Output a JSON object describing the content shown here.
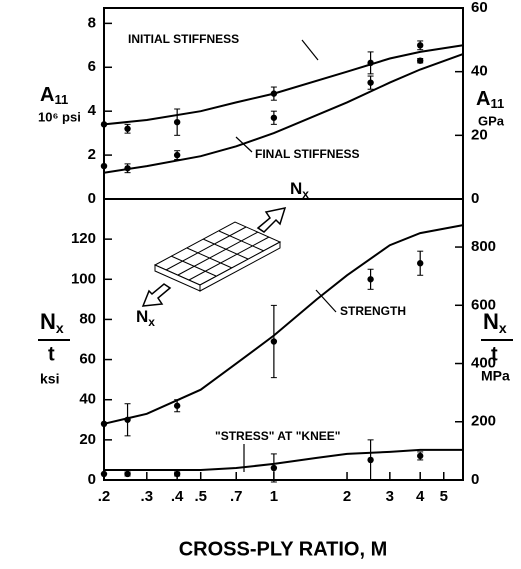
{
  "chart_data": [
    {
      "type": "line",
      "color": "#000000",
      "log_x": true,
      "xlim": [
        0.2,
        6
      ],
      "ylim": [
        0,
        8.7
      ],
      "yticks": [
        0,
        2,
        4,
        6,
        8
      ],
      "y2lim": [
        0,
        60
      ],
      "y2ticks": [
        0,
        20,
        40,
        60
      ],
      "ylabel": {
        "symbol": "A",
        "subscript": "11",
        "units": "10⁶ psi"
      },
      "y2label": {
        "symbol": "A",
        "subscript": "11",
        "units": "GPa"
      },
      "series": [
        {
          "name": "INITIAL STIFFNESS",
          "x": [
            0.2,
            0.3,
            0.5,
            0.7,
            1,
            2,
            3,
            4,
            6
          ],
          "values": [
            3.4,
            3.6,
            4.0,
            4.4,
            4.8,
            5.8,
            6.4,
            6.7,
            7.0
          ]
        },
        {
          "name": "FINAL STIFFNESS",
          "x": [
            0.2,
            0.3,
            0.5,
            0.7,
            1,
            2,
            3,
            4,
            6
          ],
          "values": [
            1.2,
            1.5,
            1.95,
            2.4,
            3.0,
            4.4,
            5.3,
            5.9,
            6.6
          ]
        },
        {
          "x": [
            0.2,
            0.25,
            0.4,
            1,
            2.5,
            4
          ],
          "values": [
            3.4,
            3.2,
            3.5,
            4.8,
            6.2,
            7.0
          ],
          "errors": [
            0,
            0.2,
            0.6,
            0.3,
            0.5,
            0.2
          ]
        },
        {
          "x": [
            0.2,
            0.25,
            0.4,
            1,
            2.5,
            4
          ],
          "values": [
            1.5,
            1.4,
            2.0,
            3.7,
            5.3,
            6.3
          ],
          "errors": [
            0,
            0.2,
            0.2,
            0.3,
            0.3,
            0.1
          ]
        }
      ]
    },
    {
      "type": "line",
      "color": "#000000",
      "log_x": true,
      "xlim": [
        0.2,
        6
      ],
      "xticks": [
        {
          "value": 0.2,
          "label": ".2"
        },
        {
          "value": 0.3,
          "label": ".3"
        },
        {
          "value": 0.4,
          "label": ".4"
        },
        {
          "value": 0.5,
          "label": ".5"
        },
        {
          "value": 0.7,
          "label": ".7"
        },
        1,
        2,
        3,
        4,
        5
      ],
      "xlabel": "CROSS-PLY RATIO, M",
      "ylim": [
        0,
        140
      ],
      "yticks": [
        0,
        20,
        40,
        60,
        80,
        100,
        120
      ],
      "y2lim": [
        0,
        965
      ],
      "y2ticks": [
        0,
        200,
        400,
        600,
        800
      ],
      "ylabel": {
        "numerator": "N",
        "numerator_sub": "x",
        "denominator": "t",
        "units": "ksi"
      },
      "y2label": {
        "numerator": "N",
        "numerator_sub": "x",
        "denominator": "t",
        "units": "MPa"
      },
      "inset_labels": [
        {
          "main": "N",
          "sub": "x"
        },
        {
          "main": "N",
          "sub": "x"
        }
      ],
      "series": [
        {
          "name": "STRENGTH",
          "x": [
            0.2,
            0.3,
            0.5,
            0.7,
            1,
            1.5,
            2,
            3,
            4,
            6
          ],
          "values": [
            28,
            33,
            45,
            58,
            72,
            90,
            102,
            117,
            123,
            127
          ]
        },
        {
          "name": "\"STRESS\" AT \"KNEE\"",
          "x": [
            0.2,
            0.3,
            0.5,
            0.7,
            1,
            1.5,
            2,
            3,
            4,
            6
          ],
          "values": [
            5,
            5,
            5,
            6,
            8,
            11,
            13,
            14,
            15,
            15
          ]
        },
        {
          "x": [
            0.2,
            0.25,
            0.4,
            1,
            2.5,
            4
          ],
          "values": [
            28,
            30,
            37,
            69,
            100,
            108
          ],
          "errors": [
            0,
            8,
            3,
            18,
            5,
            6
          ]
        },
        {
          "x": [
            0.2,
            0.25,
            0.4,
            1,
            2.5,
            4
          ],
          "values": [
            3,
            3,
            3,
            6,
            10,
            12
          ],
          "errors": [
            0,
            1,
            1,
            7,
            10,
            2
          ]
        }
      ]
    }
  ]
}
